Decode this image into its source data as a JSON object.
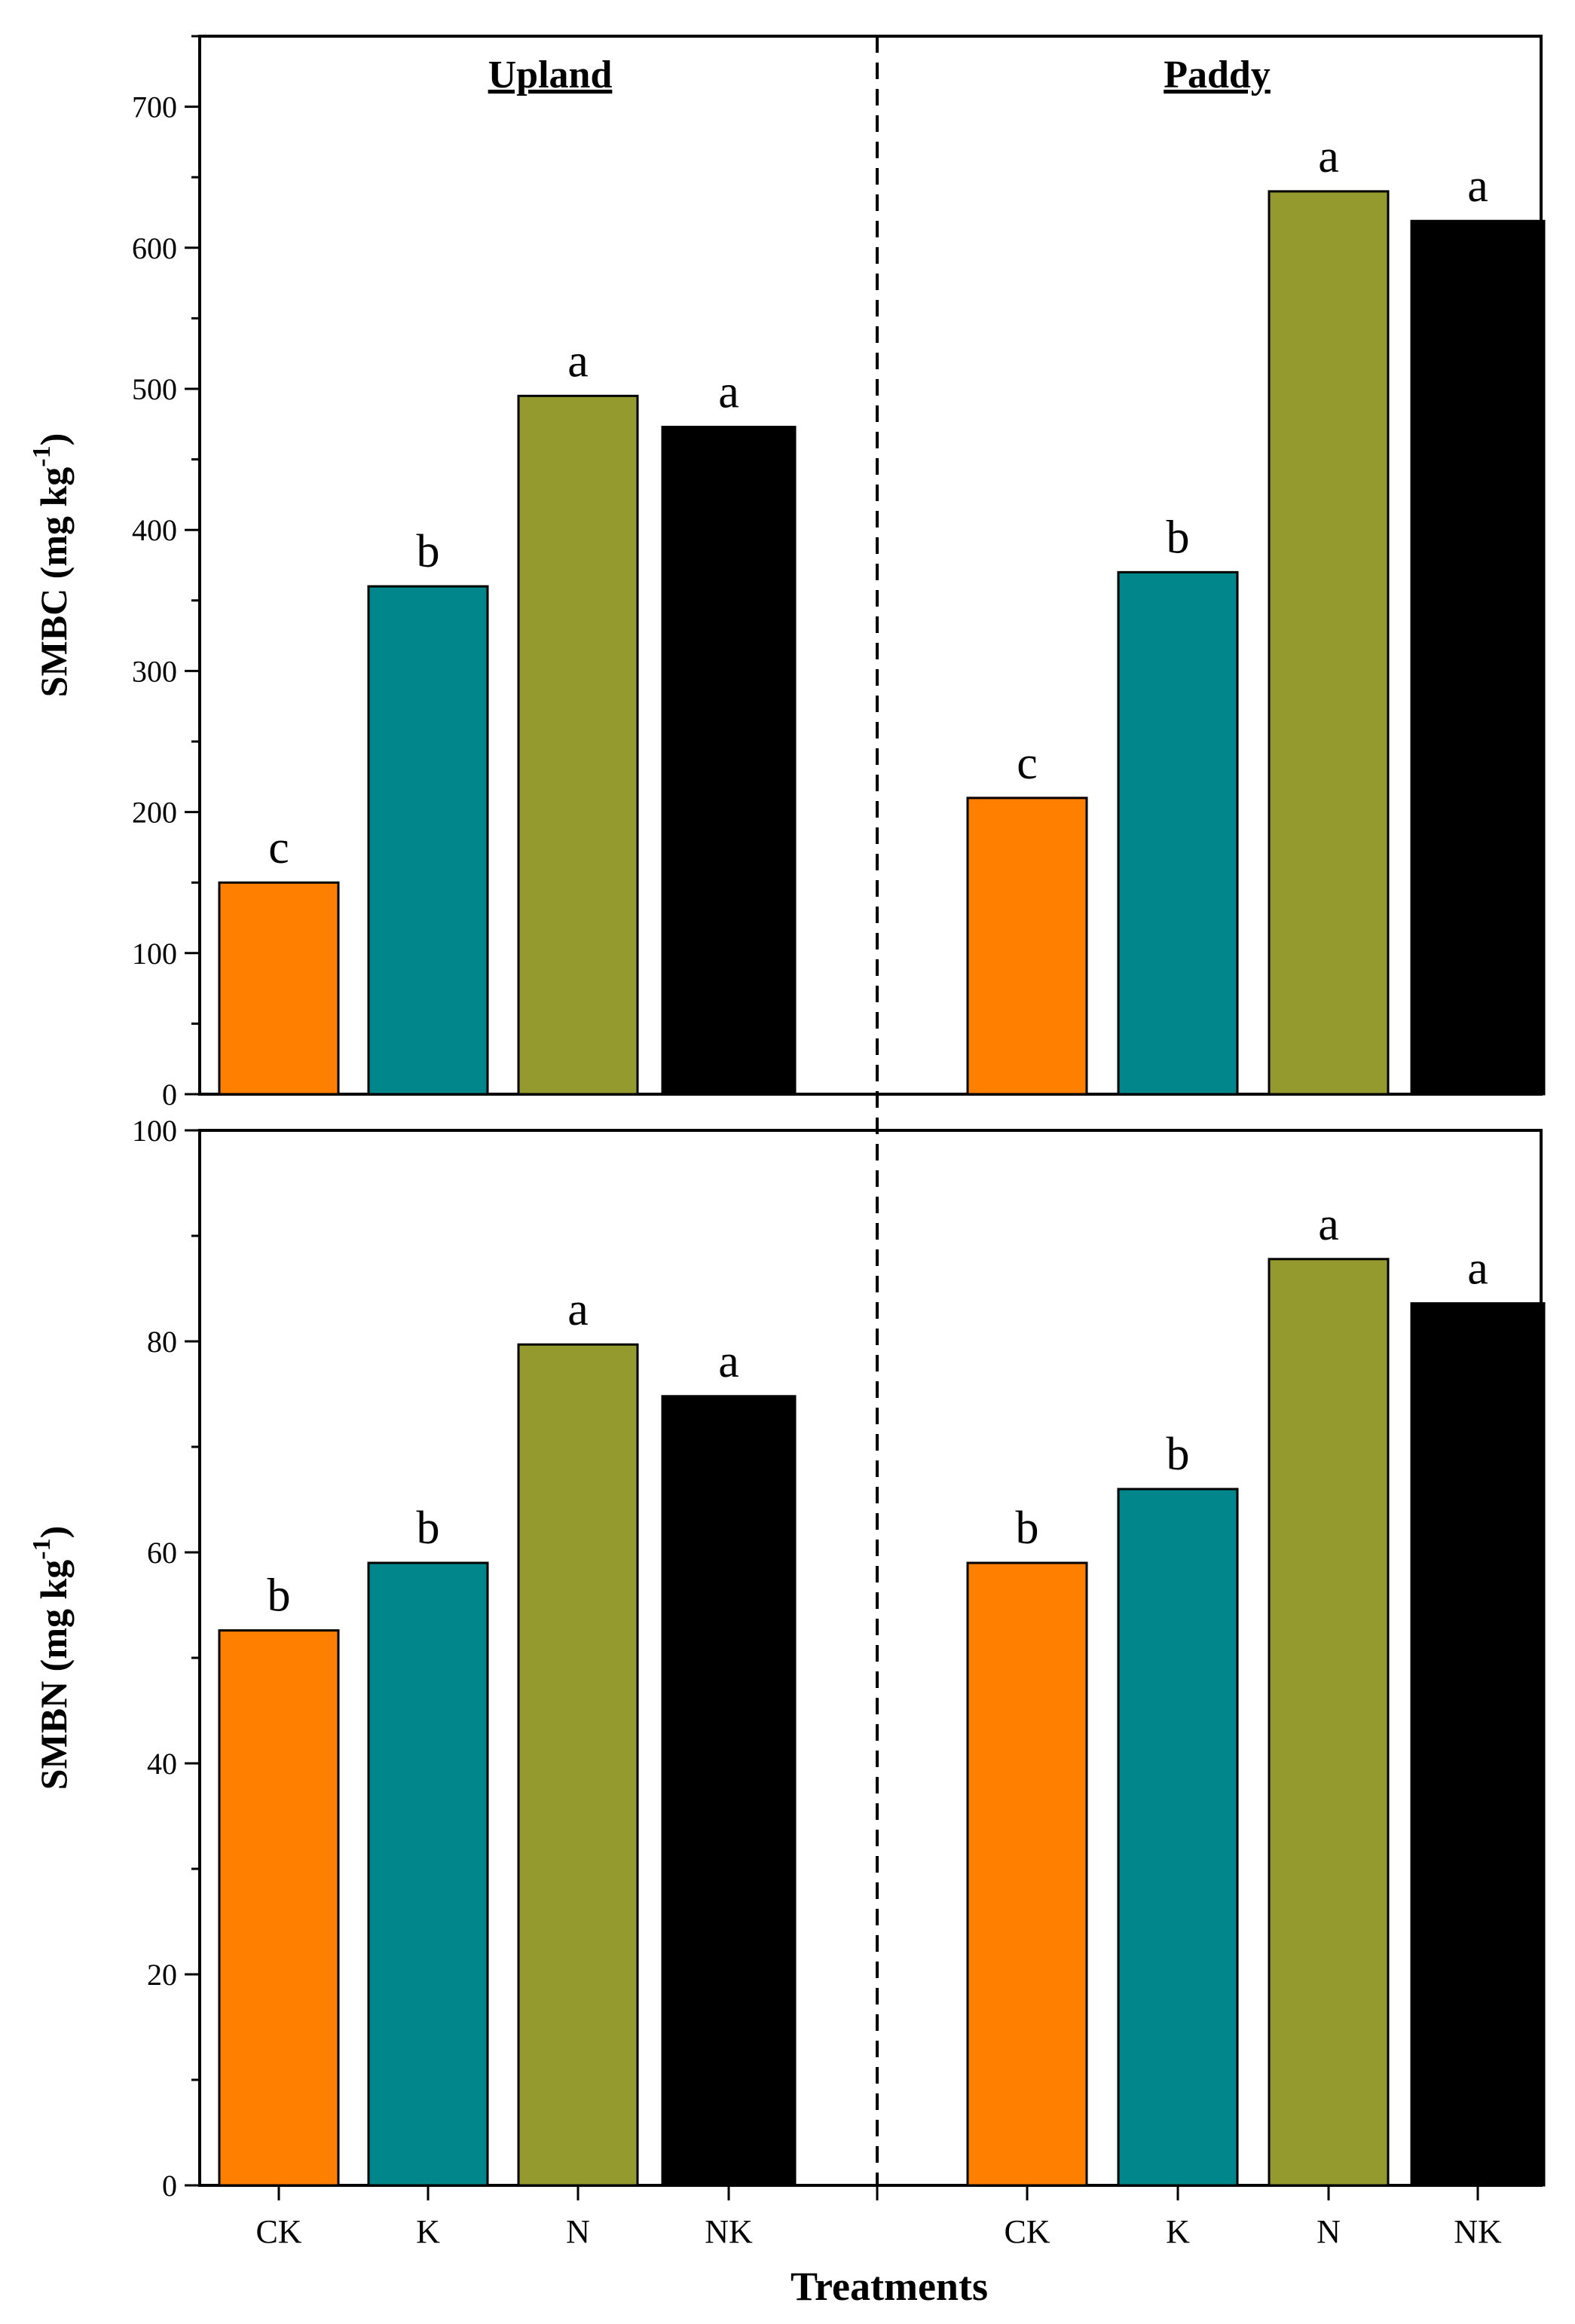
{
  "chart_data": [
    {
      "type": "bar",
      "panel": "top",
      "ylabel": "SMBC (mg kg",
      "ylabel_sup": "-1",
      "ylabel_close": ")",
      "ylim": [
        0,
        750
      ],
      "yticks": [
        0,
        100,
        200,
        300,
        400,
        500,
        600,
        700
      ],
      "regions": [
        {
          "name": "Upland",
          "categories": [
            "CK",
            "K",
            "N",
            "NK"
          ],
          "values": [
            150,
            360,
            495,
            473
          ],
          "letters": [
            "c",
            "b",
            "a",
            "a"
          ]
        },
        {
          "name": "Paddy",
          "categories": [
            "CK",
            "K",
            "N",
            "NK"
          ],
          "values": [
            210,
            370,
            640,
            619
          ],
          "letters": [
            "c",
            "b",
            "a",
            "a"
          ]
        }
      ]
    },
    {
      "type": "bar",
      "panel": "bottom",
      "ylabel": "SMBN (mg kg",
      "ylabel_sup": "-1",
      "ylabel_close": ")",
      "ylim": [
        0,
        100
      ],
      "yticks": [
        0,
        20,
        40,
        60,
        80,
        100
      ],
      "regions": [
        {
          "name": "Upland",
          "categories": [
            "CK",
            "K",
            "N",
            "NK"
          ],
          "values": [
            52.6,
            59.0,
            79.7,
            74.8
          ],
          "letters": [
            "b",
            "b",
            "a",
            "a"
          ]
        },
        {
          "name": "Paddy",
          "categories": [
            "CK",
            "K",
            "N",
            "NK"
          ],
          "values": [
            59.0,
            66.0,
            87.8,
            83.6
          ],
          "letters": [
            "b",
            "b",
            "a",
            "a"
          ]
        }
      ]
    }
  ],
  "xlabel": "Treatments",
  "colors": {
    "CK": "#ff7f00",
    "K": "#00868b",
    "N": "#959a2e",
    "NK": "#000000"
  }
}
